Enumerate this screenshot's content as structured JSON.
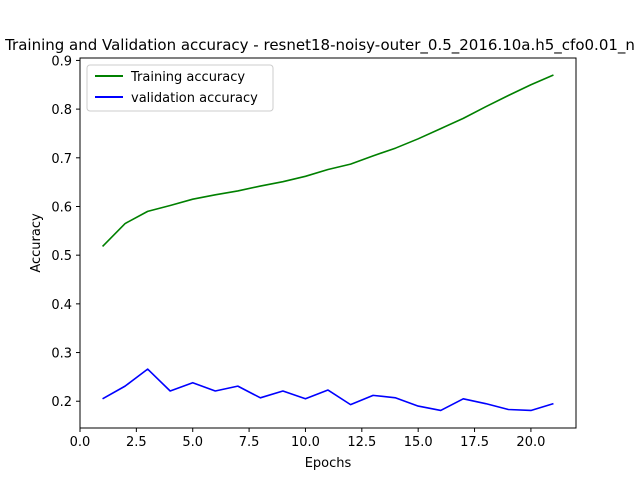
{
  "chart_data": {
    "type": "line",
    "title": "Training and Validation accuracy - resnet18-noisy-outer_0.5_2016.10a.h5_cfo0.01_n",
    "xlabel": "Epochs",
    "ylabel": "Accuracy",
    "xlim": [
      0,
      22
    ],
    "ylim": [
      0.145,
      0.905
    ],
    "xticks": [
      0.0,
      2.5,
      5.0,
      7.5,
      10.0,
      12.5,
      15.0,
      17.5,
      20.0
    ],
    "xtick_labels": [
      "0.0",
      "2.5",
      "5.0",
      "7.5",
      "10.0",
      "12.5",
      "15.0",
      "17.5",
      "20.0"
    ],
    "yticks": [
      0.2,
      0.3,
      0.4,
      0.5,
      0.6,
      0.7,
      0.8,
      0.9
    ],
    "ytick_labels": [
      "0.2",
      "0.3",
      "0.4",
      "0.5",
      "0.6",
      "0.7",
      "0.8",
      "0.9"
    ],
    "grid": false,
    "legend_position": "top-left",
    "x": [
      1,
      2,
      3,
      4,
      5,
      6,
      7,
      8,
      9,
      10,
      11,
      12,
      13,
      14,
      15,
      16,
      17,
      18,
      19,
      20,
      21
    ],
    "series": [
      {
        "name": "Training accuracy",
        "color": "#008000",
        "values": [
          0.518,
          0.565,
          0.59,
          0.602,
          0.615,
          0.624,
          0.632,
          0.642,
          0.651,
          0.662,
          0.676,
          0.687,
          0.704,
          0.72,
          0.739,
          0.76,
          0.781,
          0.805,
          0.828,
          0.85,
          0.87
        ]
      },
      {
        "name": "validation accuracy",
        "color": "#0000ff",
        "values": [
          0.205,
          0.231,
          0.266,
          0.221,
          0.238,
          0.221,
          0.231,
          0.207,
          0.221,
          0.205,
          0.223,
          0.193,
          0.212,
          0.207,
          0.19,
          0.181,
          0.205,
          0.195,
          0.183,
          0.181,
          0.195
        ]
      }
    ]
  }
}
